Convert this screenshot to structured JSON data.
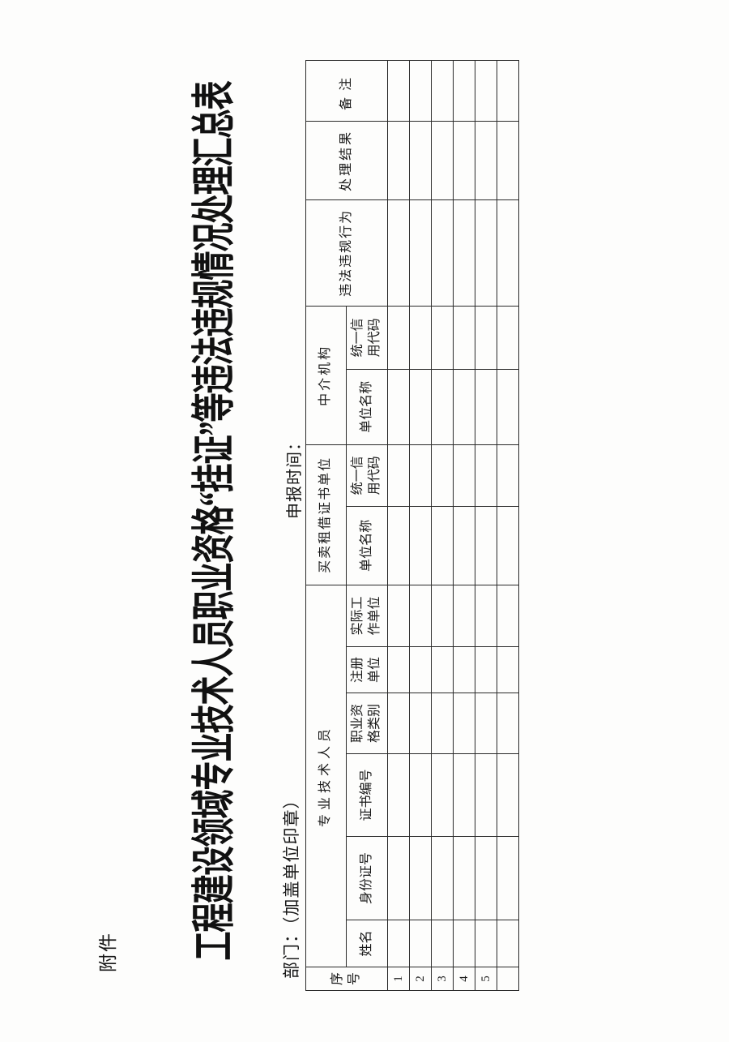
{
  "attachment_label": "附件",
  "title": "工程建设领域专业技术人员职业资格“挂证”等违法违规情况处理汇总表",
  "department_label": "部门：（加盖单位印章）",
  "report_time_label": "申报时间：",
  "table": {
    "serial_header": "序\n号",
    "groups": {
      "professional": "专业技术人员",
      "cert_trading_unit": "买卖租借证书单位",
      "intermediary": "中介机构"
    },
    "leaf_headers": {
      "name": "姓名",
      "id_number": "身份证号",
      "cert_number": "证书编号",
      "qualification_category": "职业资\n格类别",
      "registered_unit": "注册\n单位",
      "actual_work_unit": "实际工\n作单位",
      "trading_unit_name": "单位名称",
      "trading_credit_code": "统一信\n用代码",
      "intermediary_unit_name": "单位名称",
      "intermediary_credit_code": "统一信\n用代码",
      "violations": "违法违规行为",
      "handling_result": "处理结果",
      "remarks": "备注"
    },
    "rows": [
      [
        "1",
        "",
        "",
        "",
        "",
        "",
        "",
        "",
        "",
        "",
        "",
        "",
        "",
        ""
      ],
      [
        "2",
        "",
        "",
        "",
        "",
        "",
        "",
        "",
        "",
        "",
        "",
        "",
        "",
        ""
      ],
      [
        "3",
        "",
        "",
        "",
        "",
        "",
        "",
        "",
        "",
        "",
        "",
        "",
        "",
        ""
      ],
      [
        "4",
        "",
        "",
        "",
        "",
        "",
        "",
        "",
        "",
        "",
        "",
        "",
        "",
        ""
      ],
      [
        "5",
        "",
        "",
        "",
        "",
        "",
        "",
        "",
        "",
        "",
        "",
        "",
        "",
        ""
      ],
      [
        "",
        "",
        "",
        "",
        "",
        "",
        "",
        "",
        "",
        "",
        "",
        "",
        "",
        ""
      ]
    ]
  }
}
